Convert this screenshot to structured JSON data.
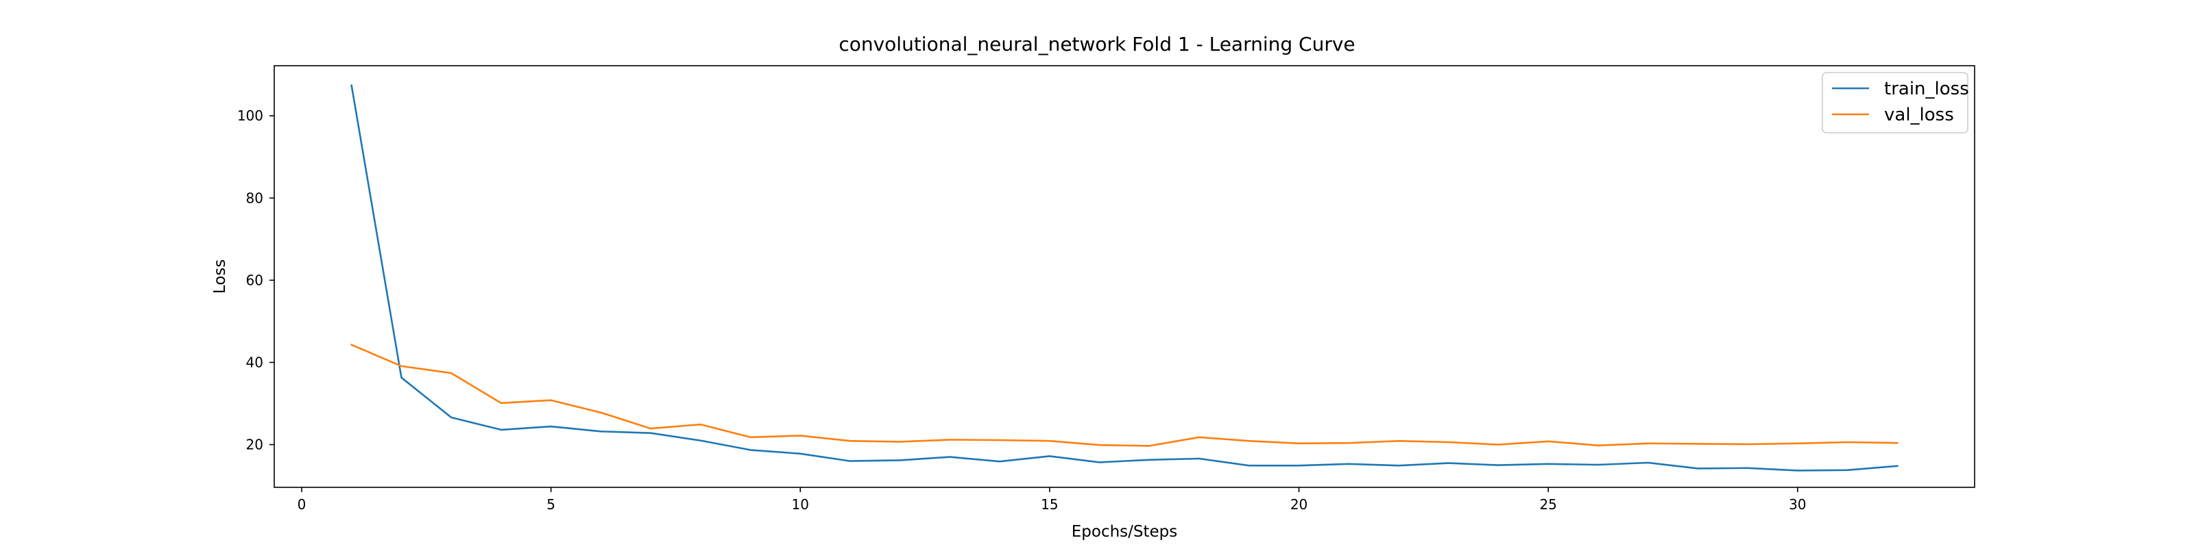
{
  "chart_data": {
    "type": "line",
    "title": "convolutional_neural_network Fold 1 - Learning Curve",
    "xlabel": "Epochs/Steps",
    "ylabel": "Loss",
    "xlim": [
      -0.55,
      33.55
    ],
    "ylim": [
      9.6,
      112.2
    ],
    "xticks": [
      0,
      5,
      10,
      15,
      20,
      25,
      30
    ],
    "yticks": [
      20,
      40,
      60,
      80,
      100
    ],
    "grid": false,
    "legend_position": "top-right",
    "x": [
      1,
      2,
      3,
      4,
      5,
      6,
      7,
      8,
      9,
      10,
      11,
      12,
      13,
      14,
      15,
      16,
      17,
      18,
      19,
      20,
      21,
      22,
      23,
      24,
      25,
      26,
      27,
      28,
      29,
      30,
      31,
      32
    ],
    "series": [
      {
        "name": "train_loss",
        "color": "#1f77b4",
        "values": [
          107.4,
          36.3,
          26.6,
          23.6,
          24.4,
          23.2,
          22.8,
          21.0,
          18.7,
          17.8,
          16.0,
          16.2,
          17.0,
          15.9,
          17.2,
          15.7,
          16.3,
          16.6,
          14.9,
          14.9,
          15.3,
          14.9,
          15.5,
          15.0,
          15.3,
          15.1,
          15.6,
          14.2,
          14.3,
          13.7,
          13.8,
          14.8
        ]
      },
      {
        "name": "val_loss",
        "color": "#ff7f0e",
        "values": [
          44.3,
          39.1,
          37.4,
          30.1,
          30.8,
          27.8,
          23.9,
          24.9,
          21.8,
          22.2,
          20.9,
          20.7,
          21.2,
          21.1,
          20.9,
          19.9,
          19.7,
          21.8,
          20.9,
          20.3,
          20.4,
          20.9,
          20.6,
          20.0,
          20.8,
          19.8,
          20.3,
          20.2,
          20.1,
          20.3,
          20.6,
          20.4
        ]
      }
    ]
  }
}
